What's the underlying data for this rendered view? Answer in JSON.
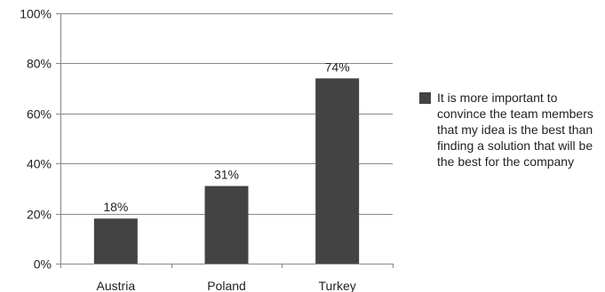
{
  "chart_data": {
    "type": "bar",
    "categories": [
      "Austria",
      "Poland",
      "Turkey"
    ],
    "series": [
      {
        "name": "It is more important to convince the team members that my idea is the best  than finding a solution that will be the best for the company",
        "values": [
          18,
          31,
          74
        ],
        "value_labels": [
          "18%",
          "31%",
          "74%"
        ],
        "color": "#434343"
      }
    ],
    "yticks": [
      0,
      20,
      40,
      60,
      80,
      100
    ],
    "ytick_labels": [
      "0%",
      "20%",
      "40%",
      "60%",
      "80%",
      "100%"
    ],
    "ylim": [
      0,
      100
    ],
    "grid": true,
    "legend_position": "right",
    "title": "",
    "xlabel": "",
    "ylabel": ""
  }
}
